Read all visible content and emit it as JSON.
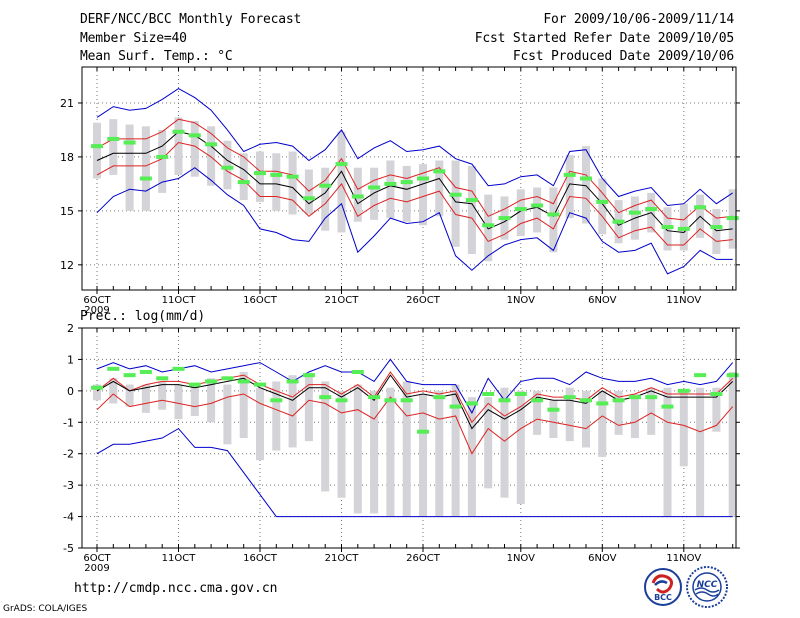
{
  "header": {
    "title": "DERF/NCC/BCC Monthly Forecast",
    "member_size": "Member Size=40",
    "variable": "Mean Surf. Temp.: °C",
    "for_range": "For 2009/10/06-2009/11/14",
    "fcst_started": "Fcst Started Refer Date 2009/10/05",
    "fcst_produced": "Fcst Produced Date 2009/10/06"
  },
  "footer": {
    "url": "http://cmdp.ncc.cma.gov.cn",
    "credit": "GrADS: COLA/IGES",
    "logo_left_text": "BCC",
    "logo_right_text": "NCC"
  },
  "colors": {
    "ensemble_bar": "#d3d3d8",
    "obs_marker": "#55ee55",
    "mean_line": "#000000",
    "spread_line": "#dd2222",
    "envelope_line": "#0000cc",
    "grid": "#777777"
  },
  "chart_data": [
    {
      "type": "line",
      "title": "Mean Surf. Temp.: °C",
      "x_days": [
        1,
        2,
        3,
        4,
        5,
        6,
        7,
        8,
        9,
        10,
        11,
        12,
        13,
        14,
        15,
        16,
        17,
        18,
        19,
        20,
        21,
        22,
        23,
        24,
        25,
        26,
        27,
        28,
        29,
        30,
        31,
        32,
        33,
        34,
        35,
        36,
        37,
        38,
        39,
        40
      ],
      "x_tick_labels": [
        {
          "day": 1,
          "label": "6OCT"
        },
        {
          "day": 6,
          "label": "11OCT"
        },
        {
          "day": 11,
          "label": "16OCT"
        },
        {
          "day": 16,
          "label": "21OCT"
        },
        {
          "day": 21,
          "label": "26OCT"
        },
        {
          "day": 27,
          "label": "1NOV"
        },
        {
          "day": 32,
          "label": "6NOV"
        },
        {
          "day": 37,
          "label": "11NOV"
        }
      ],
      "x_year_label": "2009",
      "y_ticks": [
        12,
        15,
        18,
        21
      ],
      "ylim": [
        10.6,
        23.0
      ],
      "series": [
        {
          "name": "ensemble_mean",
          "values": [
            17.8,
            18.2,
            18.2,
            18.2,
            18.6,
            19.4,
            19.2,
            18.6,
            17.8,
            17.3,
            16.5,
            16.5,
            16.3,
            15.4,
            16.0,
            17.2,
            15.4,
            16.0,
            16.4,
            16.2,
            16.5,
            16.8,
            15.5,
            15.4,
            14.0,
            14.4,
            15.0,
            15.2,
            14.7,
            16.5,
            16.4,
            15.4,
            14.2,
            14.6,
            14.9,
            13.9,
            13.8,
            14.7,
            13.9,
            14.0
          ]
        },
        {
          "name": "upper_spread",
          "values": [
            18.5,
            19.0,
            19.0,
            19.0,
            19.4,
            20.1,
            19.9,
            19.3,
            18.5,
            18.0,
            17.2,
            17.2,
            17.0,
            16.1,
            16.7,
            17.9,
            16.2,
            16.7,
            17.0,
            16.8,
            17.1,
            17.4,
            16.3,
            16.1,
            14.7,
            15.1,
            15.6,
            15.8,
            15.4,
            17.2,
            17.0,
            16.0,
            14.9,
            15.3,
            15.6,
            14.6,
            14.5,
            15.3,
            14.6,
            14.7
          ]
        },
        {
          "name": "lower_spread",
          "values": [
            17.0,
            17.5,
            17.5,
            17.5,
            17.9,
            18.8,
            18.6,
            18.0,
            17.2,
            16.7,
            15.8,
            15.8,
            15.6,
            14.7,
            15.4,
            16.5,
            14.7,
            15.3,
            15.7,
            15.5,
            15.8,
            16.1,
            14.8,
            14.6,
            13.3,
            13.7,
            14.3,
            14.6,
            14.0,
            15.8,
            15.7,
            14.7,
            13.5,
            13.9,
            14.1,
            13.1,
            13.1,
            14.0,
            13.3,
            13.4
          ]
        },
        {
          "name": "upper_envelope",
          "values": [
            20.2,
            20.8,
            20.6,
            20.7,
            21.2,
            21.8,
            21.3,
            20.6,
            19.5,
            18.3,
            18.7,
            18.8,
            18.6,
            17.8,
            18.4,
            19.5,
            17.9,
            18.5,
            18.9,
            18.3,
            18.4,
            18.6,
            17.9,
            17.6,
            16.4,
            16.5,
            16.9,
            17.0,
            16.4,
            18.3,
            18.4,
            16.8,
            15.8,
            16.1,
            16.3,
            15.3,
            15.4,
            16.2,
            15.4,
            16.0
          ]
        },
        {
          "name": "lower_envelope",
          "values": [
            14.9,
            15.8,
            16.2,
            16.1,
            16.6,
            16.8,
            17.4,
            16.7,
            15.9,
            15.3,
            14.0,
            13.8,
            13.4,
            13.3,
            14.6,
            15.4,
            12.7,
            13.6,
            14.6,
            14.3,
            14.4,
            14.9,
            12.5,
            11.7,
            12.5,
            13.1,
            13.4,
            13.5,
            12.8,
            14.9,
            14.6,
            13.3,
            12.7,
            12.8,
            13.2,
            11.5,
            11.9,
            12.8,
            12.3,
            12.3
          ]
        },
        {
          "name": "observed_marker",
          "values": [
            18.6,
            19.0,
            18.8,
            16.8,
            18.0,
            19.4,
            19.2,
            18.7,
            17.4,
            16.6,
            17.1,
            17.0,
            16.9,
            15.7,
            16.4,
            17.6,
            15.8,
            16.3,
            16.5,
            16.6,
            16.8,
            17.2,
            15.9,
            15.6,
            14.2,
            14.6,
            15.1,
            15.3,
            14.8,
            17.0,
            16.8,
            15.5,
            14.4,
            14.9,
            15.1,
            14.1,
            14.0,
            15.2,
            14.1,
            14.6
          ]
        }
      ],
      "ensemble_range_low": [
        16.8,
        17.0,
        15.0,
        15.0,
        16.0,
        17.0,
        16.9,
        16.4,
        16.2,
        15.6,
        15.5,
        15.0,
        14.8,
        14.8,
        13.9,
        13.8,
        14.4,
        14.5,
        14.6,
        14.4,
        14.2,
        14.7,
        13.0,
        12.6,
        12.2,
        13.4,
        13.6,
        13.8,
        12.7,
        14.6,
        14.3,
        13.7,
        13.2,
        13.4,
        13.8,
        12.8,
        12.8,
        13.5,
        12.6,
        12.9
      ],
      "ensemble_range_high": [
        19.9,
        20.1,
        19.8,
        19.7,
        19.5,
        20.2,
        20.0,
        19.7,
        18.9,
        18.2,
        18.3,
        18.2,
        18.3,
        17.3,
        17.4,
        19.4,
        17.4,
        17.4,
        17.8,
        17.5,
        17.6,
        17.8,
        17.8,
        17.5,
        15.9,
        15.8,
        16.2,
        16.3,
        16.3,
        18.1,
        18.6,
        16.8,
        15.6,
        15.8,
        16.0,
        15.2,
        15.4,
        15.9,
        15.1,
        16.2
      ]
    },
    {
      "type": "line",
      "title": "Prec.: log(mm/d)",
      "x_days": [
        1,
        2,
        3,
        4,
        5,
        6,
        7,
        8,
        9,
        10,
        11,
        12,
        13,
        14,
        15,
        16,
        17,
        18,
        19,
        20,
        21,
        22,
        23,
        24,
        25,
        26,
        27,
        28,
        29,
        30,
        31,
        32,
        33,
        34,
        35,
        36,
        37,
        38,
        39,
        40
      ],
      "x_tick_labels": [
        {
          "day": 1,
          "label": "6OCT"
        },
        {
          "day": 6,
          "label": "11OCT"
        },
        {
          "day": 11,
          "label": "16OCT"
        },
        {
          "day": 16,
          "label": "21OCT"
        },
        {
          "day": 21,
          "label": "26OCT"
        },
        {
          "day": 27,
          "label": "1NOV"
        },
        {
          "day": 32,
          "label": "6NOV"
        },
        {
          "day": 37,
          "label": "11NOV"
        }
      ],
      "x_year_label": "2009",
      "y_ticks": [
        -5,
        -4,
        -3,
        -2,
        -1,
        0,
        1,
        2
      ],
      "ylim": [
        -5,
        2
      ],
      "series": [
        {
          "name": "ensemble_mean",
          "values": [
            0.0,
            0.3,
            0.0,
            0.1,
            0.2,
            0.2,
            0.1,
            0.2,
            0.3,
            0.4,
            0.1,
            -0.1,
            -0.3,
            0.1,
            0.1,
            -0.2,
            0.1,
            -0.3,
            0.5,
            -0.2,
            -0.1,
            -0.2,
            -0.1,
            -1.2,
            -0.6,
            -0.9,
            -0.6,
            -0.2,
            -0.3,
            -0.3,
            -0.4,
            0.0,
            -0.3,
            -0.2,
            0.0,
            -0.2,
            -0.2,
            -0.2,
            -0.2,
            0.3
          ]
        },
        {
          "name": "upper_spread",
          "values": [
            0.0,
            0.4,
            0.0,
            0.2,
            0.3,
            0.3,
            0.2,
            0.3,
            0.4,
            0.5,
            0.2,
            0.0,
            -0.2,
            0.2,
            0.2,
            -0.1,
            0.2,
            -0.2,
            0.6,
            -0.1,
            0.0,
            -0.1,
            0.0,
            -1.0,
            -0.4,
            -0.8,
            -0.5,
            -0.1,
            -0.2,
            -0.2,
            -0.3,
            0.1,
            -0.2,
            -0.1,
            0.1,
            -0.1,
            -0.1,
            -0.1,
            -0.1,
            0.4
          ]
        },
        {
          "name": "lower_spread",
          "values": [
            -0.6,
            -0.1,
            -0.5,
            -0.4,
            -0.3,
            -0.4,
            -0.5,
            -0.4,
            -0.2,
            -0.1,
            -0.4,
            -0.6,
            -0.8,
            -0.3,
            -0.4,
            -0.7,
            -0.6,
            -0.9,
            -0.2,
            -0.8,
            -0.7,
            -0.9,
            -0.8,
            -2.0,
            -1.2,
            -1.6,
            -1.2,
            -0.9,
            -1.0,
            -1.1,
            -1.2,
            -0.8,
            -1.1,
            -1.0,
            -0.7,
            -1.0,
            -1.1,
            -1.3,
            -1.1,
            -0.5
          ]
        },
        {
          "name": "upper_envelope",
          "values": [
            0.7,
            0.9,
            0.7,
            0.8,
            0.6,
            0.7,
            0.8,
            0.6,
            0.7,
            0.8,
            0.9,
            0.6,
            0.3,
            0.6,
            0.8,
            0.6,
            0.6,
            0.3,
            1.0,
            0.3,
            0.2,
            0.2,
            0.2,
            -0.7,
            0.4,
            -0.3,
            0.3,
            0.4,
            0.4,
            0.2,
            0.6,
            0.4,
            0.3,
            0.3,
            0.4,
            0.2,
            0.3,
            0.2,
            0.3,
            0.9
          ]
        },
        {
          "name": "lower_envelope",
          "values": [
            -2.0,
            -1.7,
            -1.7,
            -1.6,
            -1.5,
            -1.2,
            -1.8,
            -1.8,
            -1.9,
            -2.6,
            -3.3,
            -4.0,
            -4.0,
            -4.0,
            -4.0,
            -4.0,
            -4.0,
            -4.0,
            -4.0,
            -4.0,
            -4.0,
            -4.0,
            -4.0,
            -4.0,
            -4.0,
            -4.0,
            -4.0,
            -4.0,
            -4.0,
            -4.0,
            -4.0,
            -4.0,
            -4.0,
            -4.0,
            -4.0,
            -4.0,
            -4.0,
            -4.0,
            -4.0,
            -4.0
          ]
        },
        {
          "name": "observed_marker",
          "values": [
            0.1,
            0.7,
            0.5,
            0.6,
            0.4,
            0.7,
            0.2,
            0.3,
            0.4,
            0.3,
            0.2,
            -0.3,
            0.3,
            0.5,
            -0.2,
            -0.3,
            0.6,
            -0.2,
            -0.3,
            -0.3,
            -1.3,
            -0.2,
            -0.5,
            -0.4,
            -0.1,
            -0.3,
            -0.1,
            -0.3,
            -0.6,
            -0.2,
            -0.3,
            -0.4,
            -0.3,
            -0.2,
            -0.2,
            -0.5,
            0.0,
            0.5,
            -0.1,
            0.5
          ]
        }
      ],
      "ensemble_range_low": [
        -0.3,
        -0.4,
        -0.5,
        -0.7,
        -0.6,
        -0.9,
        -0.8,
        -1.0,
        -1.7,
        -1.5,
        -2.2,
        -1.9,
        -1.8,
        -1.6,
        -3.2,
        -3.4,
        -3.9,
        -3.9,
        -4.0,
        -4.0,
        -4.0,
        -4.0,
        -4.0,
        -4.0,
        -3.1,
        -3.4,
        -3.6,
        -1.4,
        -1.5,
        -1.6,
        -1.8,
        -2.1,
        -1.4,
        -1.5,
        -1.4,
        -4.0,
        -2.4,
        -4.0,
        -1.3,
        -4.0
      ],
      "ensemble_range_high": [
        0.2,
        0.4,
        0.2,
        0.2,
        0.3,
        0.2,
        0.2,
        0.4,
        0.2,
        0.6,
        0.1,
        0.3,
        0.5,
        0.5,
        0.3,
        0.0,
        0.2,
        0.0,
        0.1,
        0.3,
        -0.1,
        0.0,
        0.2,
        -0.2,
        -0.2,
        0.1,
        0.0,
        0.0,
        -0.3,
        0.1,
        0.0,
        0.0,
        0.0,
        -0.1,
        0.1,
        0.1,
        0.0,
        0.1,
        0.1,
        0.6
      ]
    }
  ]
}
